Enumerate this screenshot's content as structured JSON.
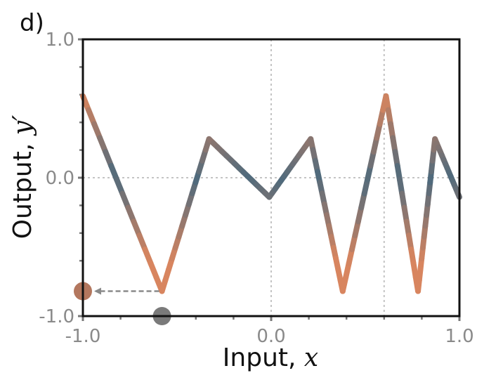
{
  "panel_label": "d)",
  "chart_data": {
    "type": "line",
    "xlabel": "Input, ",
    "xlabel_var": "x",
    "ylabel": "Output, ",
    "ylabel_var": "y′",
    "xlim": [
      -1.0,
      1.0
    ],
    "ylim": [
      -1.0,
      1.0
    ],
    "x_tick_labels": [
      "-1.0",
      "0.0",
      "1.0"
    ],
    "y_tick_labels": [
      "1.0",
      "0.0",
      "-1.0"
    ],
    "x_ticks": [
      -1.0,
      0.0,
      1.0
    ],
    "y_ticks": [
      1.0,
      0.0,
      -1.0
    ],
    "minor_x_ticks": [
      -0.8,
      -0.6,
      -0.4,
      -0.2,
      0.2,
      0.4,
      0.6,
      0.8
    ],
    "minor_y_ticks": [
      0.8,
      0.6,
      0.4,
      0.2,
      -0.2,
      -0.4,
      -0.6,
      -0.8
    ],
    "grid_x": [
      0.0,
      0.6
    ],
    "grid_y": [
      0.0
    ],
    "line": {
      "x": [
        -1.0,
        -0.58,
        -0.33,
        -0.01,
        0.21,
        0.38,
        0.61,
        0.78,
        0.87,
        1.0
      ],
      "y": [
        0.59,
        -0.82,
        0.28,
        -0.14,
        0.28,
        -0.82,
        0.59,
        -0.82,
        0.28,
        -0.14
      ]
    },
    "color_low": "#4f6a7c",
    "color_high": "#d8855f",
    "input_point": {
      "x": -0.58,
      "y": -1.0,
      "color": "#7a7a7a"
    },
    "output_point": {
      "x": -1.0,
      "y": -0.82,
      "color": "#b3775e"
    },
    "arrow": {
      "from": [
        -0.58,
        -0.82
      ],
      "to": [
        -1.0,
        -0.82
      ],
      "color": "#8a8a8a"
    }
  }
}
